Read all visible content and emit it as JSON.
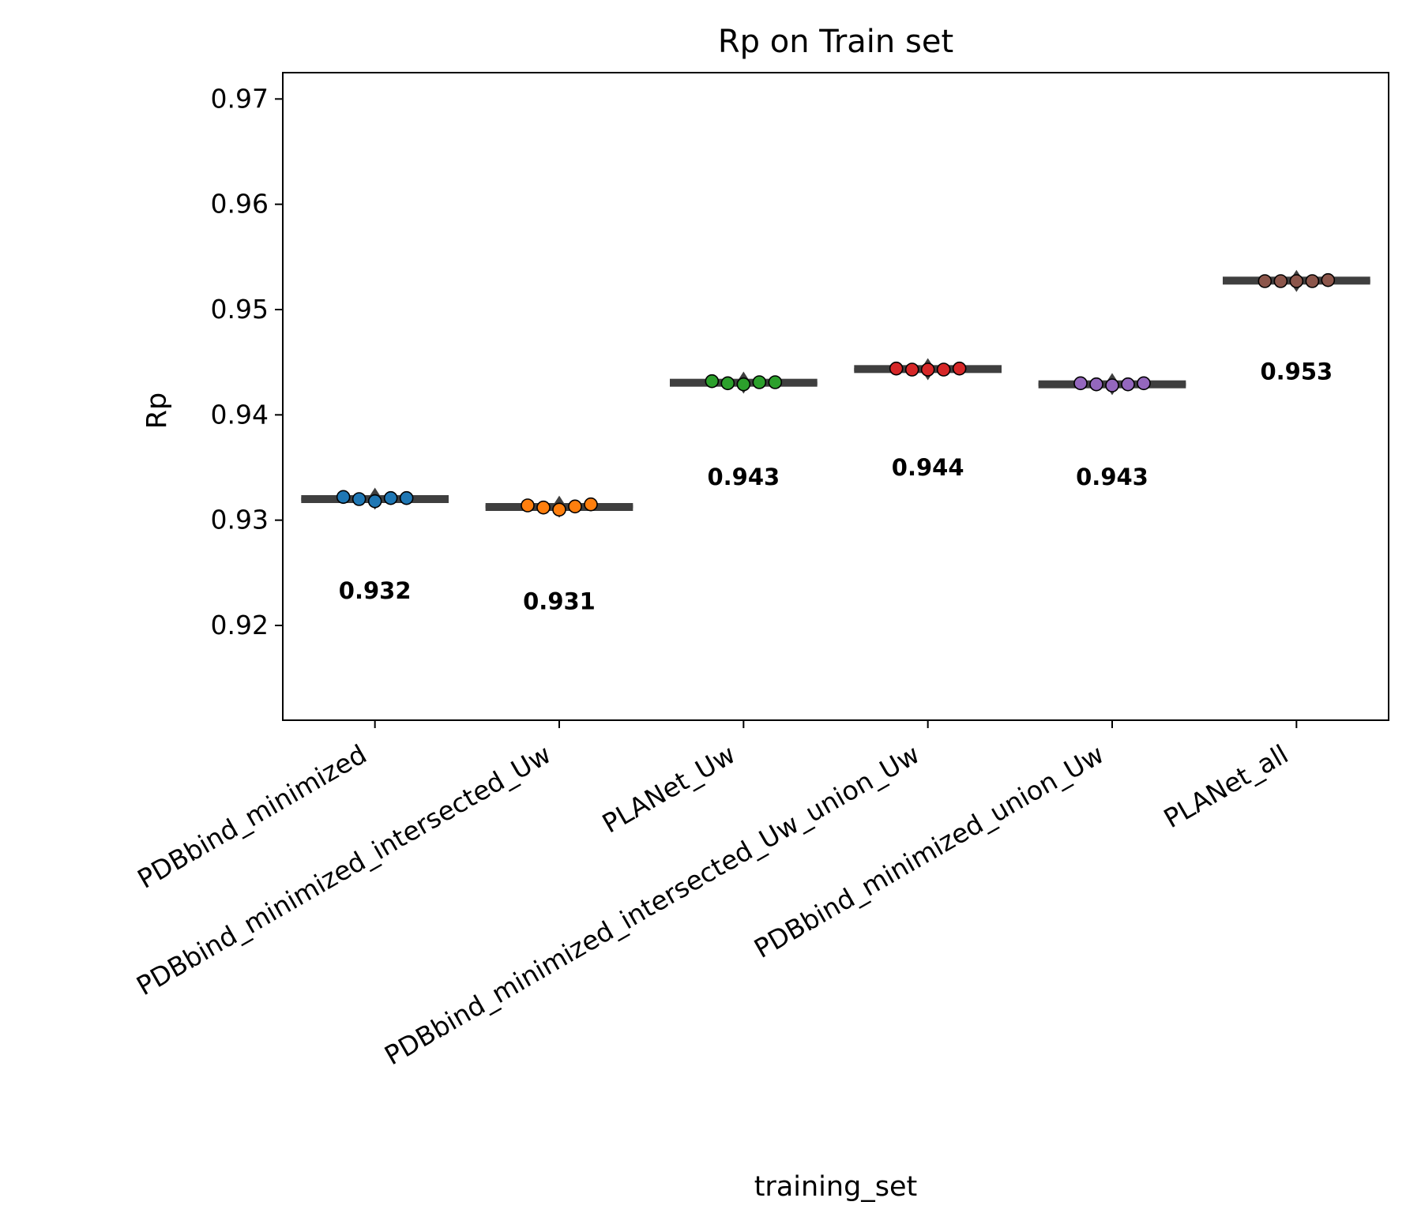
{
  "chart_data": {
    "type": "box-swarm",
    "title": "Rp on Train set",
    "xlabel": "training_set",
    "ylabel": "Rp",
    "ylim": [
      0.911,
      0.9725
    ],
    "yticks": [
      0.92,
      0.93,
      0.94,
      0.95,
      0.96,
      0.97
    ],
    "ytick_labels": [
      "0.92",
      "0.93",
      "0.94",
      "0.95",
      "0.96",
      "0.97"
    ],
    "categories": [
      "PDBbind_minimized",
      "PDBbind_minimized_intersected_Uw",
      "PLANet_Uw",
      "PDBbind_minimized_intersected_Uw_union_Uw",
      "PDBbind_minimized_union_Uw",
      "PLANet_all"
    ],
    "colors": [
      "#1f77b4",
      "#ff7f0e",
      "#2ca02c",
      "#d62728",
      "#9467bd",
      "#8c564b"
    ],
    "box_color": "#3f3f3f",
    "series": [
      {
        "values": [
          0.9322,
          0.932,
          0.9318,
          0.9321,
          0.9321
        ],
        "median": 0.932,
        "mean_label": "0.932",
        "label_y": 0.9233
      },
      {
        "values": [
          0.9314,
          0.9312,
          0.931,
          0.9313,
          0.9315
        ],
        "median": 0.9313,
        "mean_label": "0.931",
        "label_y": 0.9223
      },
      {
        "values": [
          0.9432,
          0.943,
          0.9429,
          0.9431,
          0.9431
        ],
        "median": 0.943,
        "mean_label": "0.943",
        "label_y": 0.9341
      },
      {
        "values": [
          0.9444,
          0.9443,
          0.9443,
          0.9443,
          0.9444
        ],
        "median": 0.9443,
        "mean_label": "0.944",
        "label_y": 0.935
      },
      {
        "values": [
          0.943,
          0.9429,
          0.9428,
          0.9429,
          0.943
        ],
        "median": 0.9429,
        "mean_label": "0.943",
        "label_y": 0.9341
      },
      {
        "values": [
          0.9527,
          0.9527,
          0.9527,
          0.9527,
          0.9528
        ],
        "median": 0.9527,
        "mean_label": "0.953",
        "label_y": 0.9441
      }
    ],
    "grid": false,
    "legend": "none"
  }
}
